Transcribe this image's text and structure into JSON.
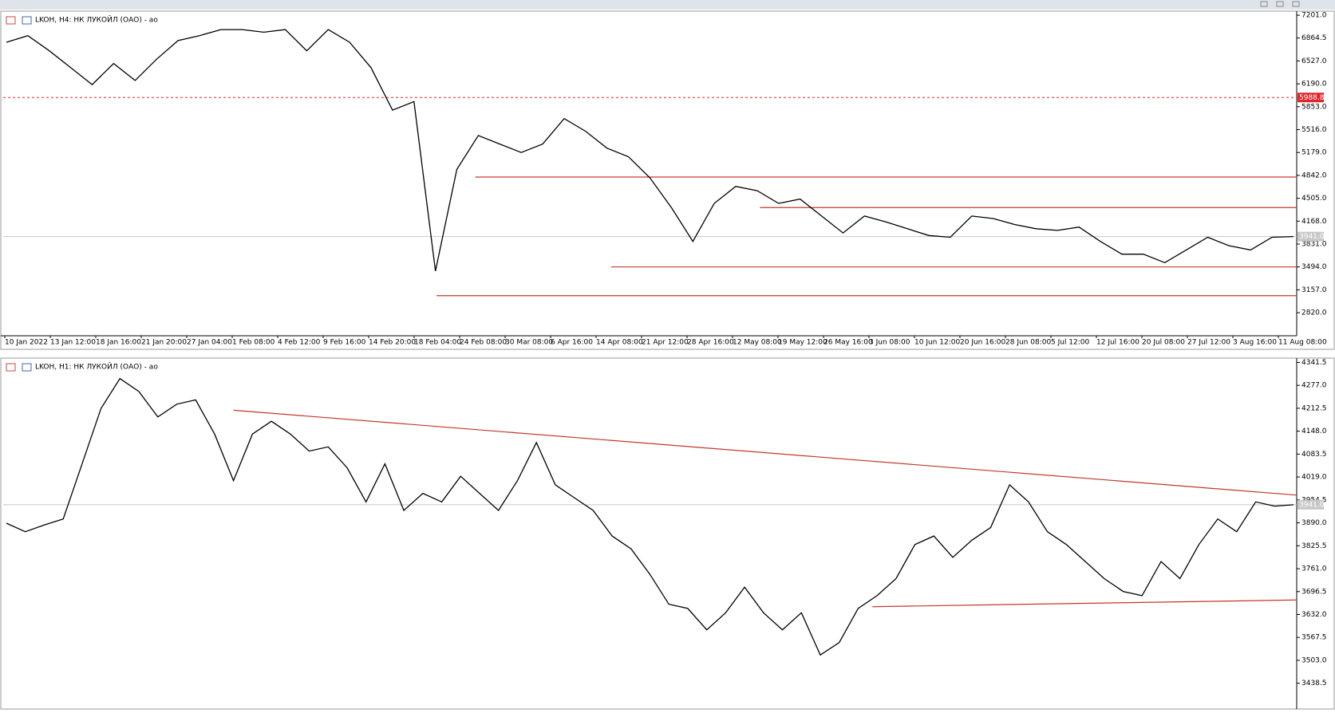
{
  "chart_data": [
    {
      "type": "line",
      "title": "LKOH, H4:  НК ЛУКОЙЛ (ОАО) - ao",
      "color": "#000000",
      "x_labels": [
        "10 Jan 2022",
        "13 Jan 12:00",
        "18 Jan 16:00",
        "21 Jan 20:00",
        "27 Jan 04:00",
        "1 Feb 08:00",
        "4 Feb 12:00",
        "9 Feb 16:00",
        "14 Feb 20:00",
        "18 Feb 04:00",
        "24 Feb 08:00",
        "30 Mar 08:00",
        "6 Apr 16:00",
        "14 Apr 08:00",
        "21 Apr 12:00",
        "28 Apr 16:00",
        "12 May 08:00",
        "19 May 12:00",
        "26 May 16:00",
        "3 Jun 08:00",
        "10 Jun 12:00",
        "20 Jun 16:00",
        "28 Jun 08:00",
        "5 Jul 12:00",
        "12 Jul 16:00",
        "20 Jul 08:00",
        "27 Jul 12:00",
        "3 Aug 16:00",
        "11 Aug 08:00"
      ],
      "values": [
        6802,
        6900,
        6677,
        6427,
        6178,
        6490,
        6240,
        6552,
        6827,
        6900,
        6989,
        6989,
        6950,
        6989,
        6677,
        6989,
        6802,
        6427,
        5803,
        5928,
        3432,
        4930,
        5429,
        5304,
        5179,
        5304,
        5678,
        5491,
        5242,
        5117,
        4805,
        4368,
        3869,
        4430,
        4680,
        4617,
        4430,
        4493,
        4243,
        3994,
        4243,
        4156,
        4056,
        3956,
        3931,
        4243,
        4206,
        4118,
        4056,
        4031,
        4081,
        3869,
        3682,
        3682,
        3557,
        3744,
        3931,
        3806,
        3744,
        3931,
        3941
      ],
      "ylim": [
        2480,
        7225
      ],
      "yticks": [
        {
          "value": 7201,
          "label": "7201.0"
        },
        6864.5,
        {
          "value": 6527,
          "label": "6527.0"
        },
        {
          "value": 6190,
          "label": "6190.0"
        },
        {
          "value": 5853,
          "label": "5853.0"
        },
        {
          "value": 5516,
          "label": "5516.0"
        },
        {
          "value": 5179,
          "label": "5179.0"
        },
        {
          "value": 4842,
          "label": "4842.0"
        },
        {
          "value": 4505,
          "label": "4505.0"
        },
        {
          "value": 4168,
          "label": "4168.0"
        },
        {
          "value": 3831,
          "label": "3831.0"
        },
        {
          "value": 3494,
          "label": "3494.0"
        },
        {
          "value": 3157,
          "label": "3157.0"
        },
        {
          "value": 2820,
          "label": "2820.0"
        }
      ],
      "last_price": {
        "value": 3941,
        "label": "3941.0"
      },
      "alert_line": {
        "value": 5988.8,
        "label": "5988.8",
        "color": "#e0262b"
      },
      "levels": [
        4817,
        4368,
        3494,
        3070
      ],
      "level_color": "#c0392b"
    },
    {
      "type": "line",
      "title": "LKOH, H1:  НК ЛУКОЙЛ (ОАО) - ao",
      "color": "#000000",
      "values": [
        3889,
        3865,
        3884,
        3901,
        4056,
        4212,
        4296,
        4260,
        4188,
        4224,
        4236,
        4140,
        4009,
        4140,
        4176,
        4140,
        4092,
        4104,
        4045,
        3949,
        4056,
        3925,
        3973,
        3949,
        4021,
        3973,
        3925,
        4009,
        4116,
        3997,
        3961,
        3925,
        3853,
        3817,
        3745,
        3661,
        3649,
        3589,
        3637,
        3709,
        3637,
        3589,
        3637,
        3518,
        3553,
        3649,
        3685,
        3733,
        3829,
        3853,
        3793,
        3841,
        3877,
        3997,
        3949,
        3865,
        3829,
        3781,
        3733,
        3697,
        3685,
        3781,
        3733,
        3829,
        3901,
        3865,
        3949,
        3937,
        3941
      ],
      "ylim": [
        3375,
        4347
      ],
      "yticks": [
        4341.5,
        {
          "value": 4277,
          "label": "4277.0"
        },
        4212.5,
        {
          "value": 4148,
          "label": "4148.0"
        },
        4083.5,
        {
          "value": 4019,
          "label": "4019.0"
        },
        3954.5,
        {
          "value": 3890,
          "label": "3890.0"
        },
        3825.5,
        {
          "value": 3761,
          "label": "3761.0"
        },
        3696.5,
        {
          "value": 3632,
          "label": "3632.0"
        },
        3567.5,
        {
          "value": 3503,
          "label": "3503.0"
        },
        3438.5
      ],
      "last_price": {
        "value": 3941,
        "label": "3941.0"
      },
      "trendlines": [
        [
          4207,
          3968
        ],
        [
          3654,
          3673
        ]
      ],
      "level_color": "#c0392b"
    }
  ]
}
